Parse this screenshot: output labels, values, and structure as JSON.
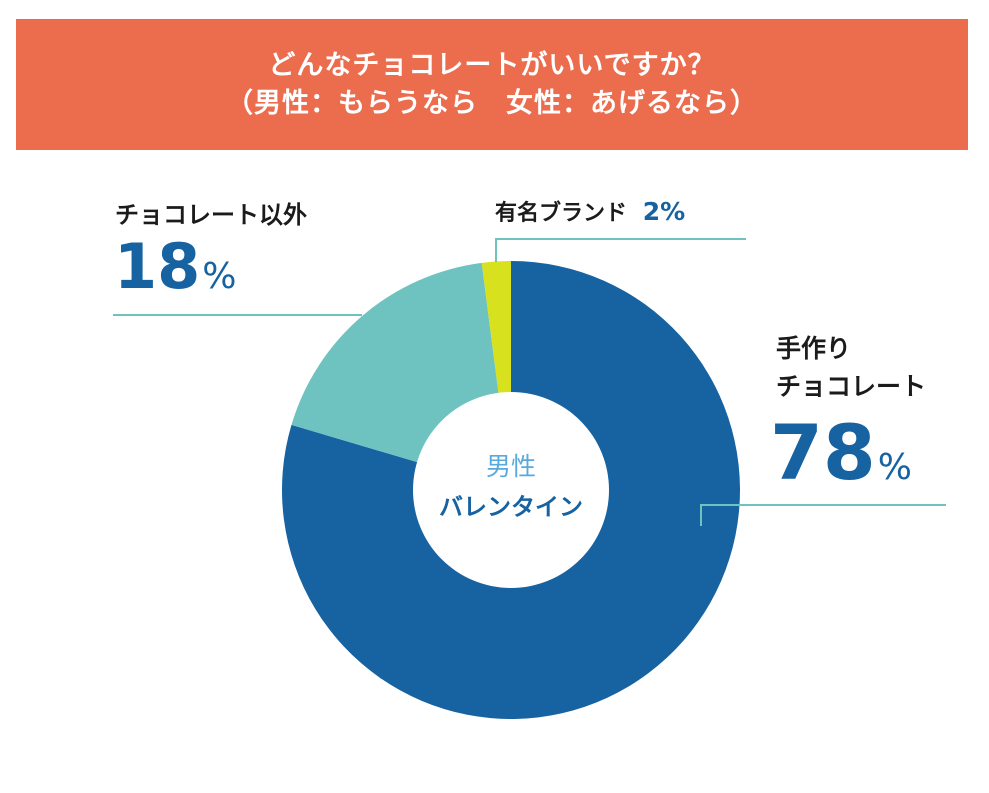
{
  "header": {
    "title_line1": "どんなチョコレートがいいですか？",
    "title_line2": "（男性：もらうなら　女性：あげるなら）"
  },
  "colors": {
    "banner": "#ec6c4e",
    "handmade": "#1762a1",
    "other": "#6ec3c0",
    "brand": "#d8e11e",
    "leader_line": "#6ec3c0",
    "center_top_text": "#5aa9dc"
  },
  "center": {
    "top": "男性",
    "bottom": "バレンタイン"
  },
  "chart_data": {
    "type": "pie",
    "donut": true,
    "start": "12 o'clock, clockwise",
    "slices": [
      {
        "label_line1": "手作り",
        "label_line2": "チョコレート",
        "value": 78,
        "pct": "78",
        "color": "#1762a1"
      },
      {
        "label": "チョコレート以外",
        "value": 18,
        "pct": "18",
        "color": "#6ec3c0"
      },
      {
        "label": "有名ブランド",
        "value": 2,
        "pct": "2%",
        "color": "#d8e11e"
      }
    ],
    "unit": "%"
  }
}
